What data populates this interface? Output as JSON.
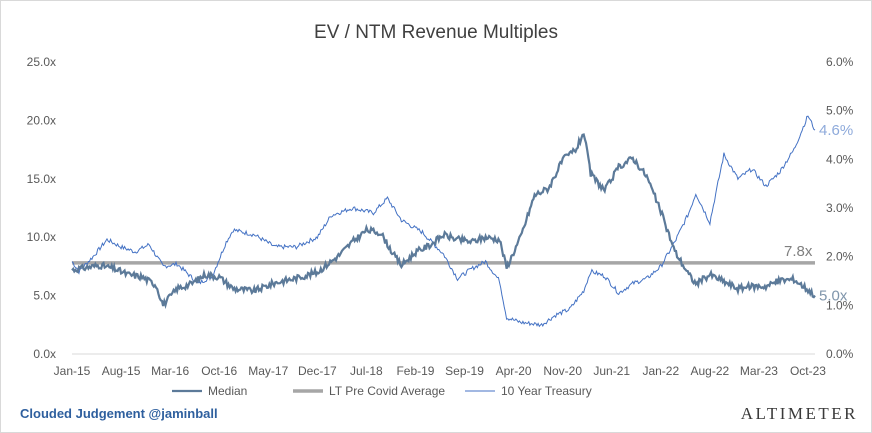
{
  "chart_data": {
    "type": "line",
    "title": "EV / NTM Revenue Multiples",
    "x_ticks": [
      "Jan-15",
      "Aug-15",
      "Mar-16",
      "Oct-16",
      "May-17",
      "Dec-17",
      "Jul-18",
      "Feb-19",
      "Sep-19",
      "Apr-20",
      "Nov-20",
      "Jun-21",
      "Jan-22",
      "Aug-22",
      "Mar-23",
      "Oct-23"
    ],
    "y_left_ticks": [
      "0.0x",
      "5.0x",
      "10.0x",
      "15.0x",
      "20.0x",
      "25.0x"
    ],
    "y_right_ticks": [
      "0.0%",
      "1.0%",
      "2.0%",
      "3.0%",
      "4.0%",
      "5.0%",
      "6.0%"
    ],
    "ylim_left": [
      0,
      25
    ],
    "ylim_right": [
      0,
      6
    ],
    "xlim": [
      "2015-01",
      "2023-11"
    ],
    "grid": false,
    "legend_position": "bottom",
    "series": [
      {
        "name": "Median",
        "axis": "left",
        "color": "#5c7a99",
        "points": [
          [
            "2015-01",
            7.2
          ],
          [
            "2015-03",
            7.4
          ],
          [
            "2015-05",
            7.6
          ],
          [
            "2015-07",
            7.3
          ],
          [
            "2015-09",
            6.8
          ],
          [
            "2015-11",
            6.6
          ],
          [
            "2016-01",
            5.9
          ],
          [
            "2016-02",
            4.2
          ],
          [
            "2016-04",
            5.6
          ],
          [
            "2016-06",
            6.0
          ],
          [
            "2016-08",
            6.8
          ],
          [
            "2016-10",
            6.6
          ],
          [
            "2016-12",
            5.6
          ],
          [
            "2017-03",
            5.4
          ],
          [
            "2017-06",
            6.1
          ],
          [
            "2017-09",
            6.5
          ],
          [
            "2017-12",
            7.0
          ],
          [
            "2018-03",
            8.4
          ],
          [
            "2018-05",
            9.6
          ],
          [
            "2018-07",
            10.6
          ],
          [
            "2018-09",
            10.4
          ],
          [
            "2018-11",
            8.4
          ],
          [
            "2018-12",
            7.6
          ],
          [
            "2019-02",
            8.7
          ],
          [
            "2019-04",
            9.3
          ],
          [
            "2019-06",
            10.2
          ],
          [
            "2019-08",
            9.8
          ],
          [
            "2019-10",
            9.6
          ],
          [
            "2019-12",
            10.0
          ],
          [
            "2020-02",
            9.8
          ],
          [
            "2020-03",
            7.4
          ],
          [
            "2020-05",
            10.0
          ],
          [
            "2020-07",
            13.6
          ],
          [
            "2020-09",
            14.2
          ],
          [
            "2020-11",
            16.6
          ],
          [
            "2021-01",
            17.6
          ],
          [
            "2021-02",
            19.0
          ],
          [
            "2021-03",
            15.4
          ],
          [
            "2021-05",
            14.0
          ],
          [
            "2021-07",
            16.0
          ],
          [
            "2021-09",
            16.8
          ],
          [
            "2021-11",
            15.2
          ],
          [
            "2022-01",
            12.2
          ],
          [
            "2022-03",
            8.8
          ],
          [
            "2022-05",
            6.8
          ],
          [
            "2022-06",
            6.0
          ],
          [
            "2022-08",
            6.8
          ],
          [
            "2022-10",
            6.2
          ],
          [
            "2022-12",
            5.6
          ],
          [
            "2023-02",
            5.8
          ],
          [
            "2023-04",
            5.8
          ],
          [
            "2023-06",
            6.3
          ],
          [
            "2023-08",
            6.4
          ],
          [
            "2023-10",
            5.5
          ],
          [
            "2023-11",
            5.0
          ]
        ]
      },
      {
        "name": "LT Pre Covid Average",
        "axis": "left",
        "color": "#a6a6a6",
        "value": 7.8,
        "label": "7.8x"
      },
      {
        "name": "10 Year Treasury",
        "axis": "right",
        "color": "#4472c4",
        "end_label": "4.6%",
        "points": [
          [
            "2015-01",
            1.9
          ],
          [
            "2015-02",
            1.7
          ],
          [
            "2015-04",
            2.0
          ],
          [
            "2015-06",
            2.35
          ],
          [
            "2015-08",
            2.2
          ],
          [
            "2015-10",
            2.1
          ],
          [
            "2015-12",
            2.25
          ],
          [
            "2016-02",
            1.8
          ],
          [
            "2016-04",
            1.85
          ],
          [
            "2016-07",
            1.45
          ],
          [
            "2016-09",
            1.6
          ],
          [
            "2016-11",
            2.3
          ],
          [
            "2016-12",
            2.55
          ],
          [
            "2017-03",
            2.45
          ],
          [
            "2017-06",
            2.2
          ],
          [
            "2017-09",
            2.2
          ],
          [
            "2017-12",
            2.4
          ],
          [
            "2018-02",
            2.85
          ],
          [
            "2018-05",
            3.0
          ],
          [
            "2018-08",
            2.9
          ],
          [
            "2018-10",
            3.2
          ],
          [
            "2018-12",
            2.75
          ],
          [
            "2019-03",
            2.5
          ],
          [
            "2019-06",
            2.05
          ],
          [
            "2019-08",
            1.55
          ],
          [
            "2019-10",
            1.75
          ],
          [
            "2019-12",
            1.9
          ],
          [
            "2020-02",
            1.5
          ],
          [
            "2020-03",
            0.75
          ],
          [
            "2020-05",
            0.65
          ],
          [
            "2020-08",
            0.6
          ],
          [
            "2020-10",
            0.8
          ],
          [
            "2020-12",
            0.92
          ],
          [
            "2021-02",
            1.3
          ],
          [
            "2021-03",
            1.7
          ],
          [
            "2021-05",
            1.6
          ],
          [
            "2021-07",
            1.25
          ],
          [
            "2021-09",
            1.45
          ],
          [
            "2021-11",
            1.55
          ],
          [
            "2022-01",
            1.8
          ],
          [
            "2022-03",
            2.3
          ],
          [
            "2022-05",
            2.9
          ],
          [
            "2022-06",
            3.3
          ],
          [
            "2022-08",
            2.7
          ],
          [
            "2022-10",
            4.1
          ],
          [
            "2022-12",
            3.6
          ],
          [
            "2023-02",
            3.8
          ],
          [
            "2023-04",
            3.45
          ],
          [
            "2023-06",
            3.75
          ],
          [
            "2023-08",
            4.2
          ],
          [
            "2023-10",
            4.9
          ],
          [
            "2023-11",
            4.6
          ]
        ]
      }
    ]
  },
  "footer": {
    "brand": "Clouded Judgement @jaminball",
    "logo": "ALTIMETER"
  }
}
